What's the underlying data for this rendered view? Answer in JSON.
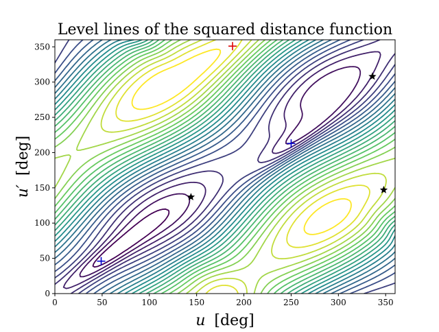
{
  "chart_data": {
    "type": "contour",
    "title": "Level lines of the squared distance function",
    "xlabel_var": "u",
    "xlabel_unit": "[deg]",
    "ylabel_var": "u′",
    "ylabel_unit": "[deg]",
    "xlim": [
      0,
      360
    ],
    "ylim": [
      0,
      360
    ],
    "xticks": [
      0,
      50,
      100,
      150,
      200,
      250,
      300,
      350
    ],
    "yticks": [
      0,
      50,
      100,
      150,
      200,
      250,
      300,
      350
    ],
    "grid": false,
    "colormap": "viridis",
    "colormap_stops": [
      "#440154",
      "#3b528b",
      "#21918c",
      "#5ec962",
      "#fde725"
    ],
    "contour_levels": 22,
    "minima_markers": [
      {
        "u": 49,
        "v": 46,
        "color": "#0000cc",
        "marker": "plus"
      },
      {
        "u": 250,
        "v": 213,
        "color": "#0000cc",
        "marker": "plus"
      }
    ],
    "maxima_markers": [
      {
        "u": 188,
        "v": 351,
        "color": "#dd0000",
        "marker": "plus"
      }
    ],
    "saddle_markers": [
      {
        "u": 144,
        "v": 137,
        "color": "#000000",
        "marker": "star"
      },
      {
        "u": 336,
        "v": 308,
        "color": "#000000",
        "marker": "star"
      },
      {
        "u": 348,
        "v": 147,
        "color": "#000000",
        "marker": "star"
      }
    ]
  }
}
